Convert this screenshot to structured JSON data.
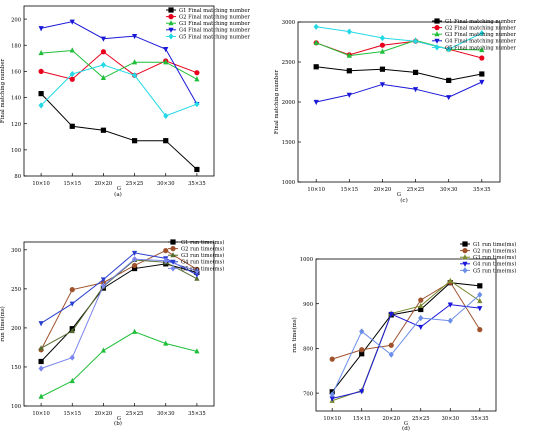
{
  "colors": {
    "G1": "#000000",
    "G2": "#e8001c",
    "G3": "#1fbf3a",
    "G4": "#1a18d8",
    "G5": "#23d9e6",
    "b_G2": "#a0522d",
    "b_G3": "#556b2f",
    "b_G4": "#2a3fd1",
    "b_G5": "#7a86ee",
    "d_G2": "#a0522d",
    "d_G3": "#7a8a30",
    "d_G4": "#1a18d8",
    "d_G5": "#6b8ee8"
  },
  "chart_data": [
    {
      "id": "a",
      "type": "line",
      "caption": "(a)",
      "xlabel": "G",
      "ylabel": "Final matching number",
      "categories": [
        "10×10",
        "15×15",
        "20×20",
        "25×25",
        "30×30",
        "35×35"
      ],
      "ylim": [
        80,
        210
      ],
      "yticks": [
        80,
        100,
        120,
        140,
        160,
        180,
        200
      ],
      "legend_position": "top-right",
      "series": [
        {
          "name": "G1 Final matching number",
          "marker": "square",
          "color": "G1",
          "values": [
            143,
            118,
            115,
            107,
            107,
            85
          ]
        },
        {
          "name": "G2 Final matching number",
          "marker": "circle",
          "color": "G2",
          "values": [
            160,
            154,
            175,
            157,
            168,
            159
          ]
        },
        {
          "name": "G3 Final matching number",
          "marker": "triangle-up",
          "color": "G3",
          "values": [
            174,
            176,
            155,
            167,
            167,
            154
          ]
        },
        {
          "name": "G4 Final matching number",
          "marker": "triangle-down",
          "color": "G4",
          "values": [
            193,
            198,
            185,
            187,
            177,
            135
          ]
        },
        {
          "name": "G5 Final matching number",
          "marker": "diamond",
          "color": "G5",
          "values": [
            134,
            158,
            165,
            157,
            126,
            135
          ]
        }
      ]
    },
    {
      "id": "c",
      "type": "line",
      "caption": "(c)",
      "xlabel": "G",
      "ylabel": "Final matching number",
      "categories": [
        "10×10",
        "15×15",
        "20×20",
        "25×25",
        "30×30",
        "35×35"
      ],
      "ylim": [
        1000,
        3000
      ],
      "yticks": [
        1000,
        1500,
        2000,
        2500,
        3000
      ],
      "legend_position": "top-right",
      "series": [
        {
          "name": "G1 Final matching number",
          "marker": "square",
          "color": "G1",
          "values": [
            2440,
            2390,
            2410,
            2370,
            2270,
            2350
          ]
        },
        {
          "name": "G2 Final matching number",
          "marker": "circle",
          "color": "G2",
          "values": [
            2740,
            2590,
            2710,
            2760,
            2660,
            2550
          ]
        },
        {
          "name": "G3 Final matching number",
          "marker": "triangle-up",
          "color": "G3",
          "values": [
            2740,
            2580,
            2630,
            2770,
            2660,
            2650
          ]
        },
        {
          "name": "G4 Final matching number",
          "marker": "triangle-down",
          "color": "G4",
          "values": [
            2000,
            2090,
            2220,
            2160,
            2060,
            2250
          ]
        },
        {
          "name": "G5 Final matching number",
          "marker": "diamond",
          "color": "G5",
          "values": [
            2940,
            2880,
            2800,
            2760,
            2660,
            2860
          ]
        }
      ]
    },
    {
      "id": "b",
      "type": "line",
      "caption": "(b)",
      "xlabel": "G",
      "ylabel": "run time(ms)",
      "categories": [
        "10×10",
        "15×15",
        "20×20",
        "25×25",
        "30×30",
        "35×35"
      ],
      "ylim": [
        100,
        310
      ],
      "yticks": [
        100,
        150,
        200,
        250,
        300
      ],
      "legend_position": "top-right",
      "series": [
        {
          "name": "G1 run time(ms)",
          "marker": "square",
          "color": "G1",
          "values": [
            157,
            199,
            251,
            276,
            282,
            271
          ]
        },
        {
          "name": "G2 run time(ms)",
          "marker": "circle",
          "color": "b_G2",
          "values": [
            172,
            249,
            258,
            280,
            299,
            275
          ]
        },
        {
          "name": "G3 run time(ms)",
          "marker": "triangle-up",
          "color": "b_G3",
          "values": [
            174,
            196,
            253,
            287,
            284,
            263
          ]
        },
        {
          "name": "G4 run time(ms)",
          "marker": "triangle-down",
          "color": "b_G4",
          "values": [
            206,
            231,
            262,
            296,
            289,
            268
          ]
        },
        {
          "name": "G5 run time(ms)",
          "marker": "diamond",
          "color": "b_G5",
          "values": [
            148,
            162,
            254,
            288,
            286,
            273
          ]
        }
      ]
    },
    {
      "id": "d",
      "type": "line",
      "caption": "(d)",
      "xlabel": "G",
      "ylabel": "run time(ms)",
      "categories": [
        "10×10",
        "15×15",
        "20×20",
        "25×25",
        "30×30",
        "35×35"
      ],
      "ylim": [
        660,
        1000
      ],
      "yticks": [
        700,
        800,
        900,
        1000
      ],
      "legend_position": "top-right",
      "series": [
        {
          "name": "G1 run time(ms)",
          "marker": "square",
          "color": "G1",
          "values": [
            703,
            788,
            875,
            887,
            947,
            940
          ]
        },
        {
          "name": "G2 run time(ms)",
          "marker": "circle",
          "color": "d_G2",
          "values": [
            776,
            797,
            807,
            908,
            948,
            842
          ]
        },
        {
          "name": "G3 run time(ms)",
          "marker": "triangle-up",
          "color": "d_G3",
          "values": [
            683,
            706,
            878,
            895,
            951,
            906
          ]
        },
        {
          "name": "G4 run time(ms)",
          "marker": "triangle-down",
          "color": "d_G4",
          "values": [
            688,
            704,
            877,
            848,
            898,
            890
          ]
        },
        {
          "name": "G5 run time(ms)",
          "marker": "diamond",
          "color": "d_G5",
          "values": [
            697,
            838,
            786,
            868,
            862,
            920
          ]
        }
      ]
    }
  ],
  "extra": {
    "b_G3_line_note": "",
    "b_lower_series": [
      {
        "name": "G3 run time(ms)",
        "color": "#1fbf3a",
        "values": [
          112,
          132,
          171,
          195,
          180,
          170
        ]
      }
    ]
  }
}
